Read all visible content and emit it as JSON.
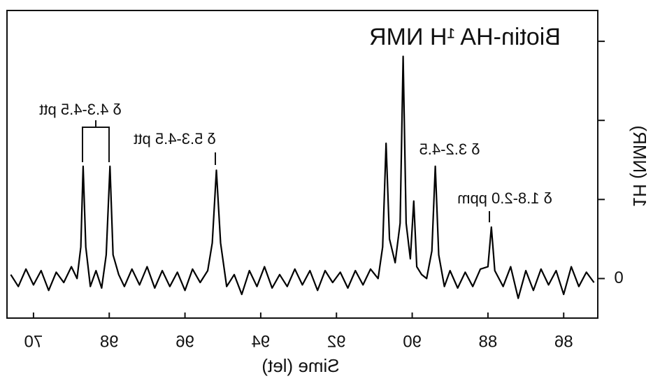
{
  "chart_data": {
    "type": "line",
    "title": "Biotin-HA ¹H NMR",
    "x_label": "Sime (let)",
    "y_label": "1H (NMR)",
    "annotations": [
      "δ 4.3-4.5 ptt",
      "δ 5.3-4.5 ptt",
      "δ 3.2-4.5",
      "δ 1.8-2.0 ppm"
    ],
    "color": "#000000",
    "mirrored_text": true,
    "x": [
      100.6,
      100.4,
      100.2,
      100.0,
      99.8,
      99.6,
      99.4,
      99.2,
      99.0,
      98.85,
      98.75,
      98.69,
      98.62,
      98.5,
      98.35,
      98.2,
      98.08,
      97.98,
      97.9,
      97.75,
      97.6,
      97.4,
      97.2,
      97.0,
      96.8,
      96.6,
      96.4,
      96.2,
      96.0,
      95.8,
      95.6,
      95.4,
      95.28,
      95.17,
      95.06,
      94.9,
      94.7,
      94.5,
      94.3,
      94.1,
      93.9,
      93.7,
      93.5,
      93.3,
      93.1,
      92.9,
      92.7,
      92.5,
      92.3,
      92.1,
      91.9,
      91.7,
      91.5,
      91.3,
      91.1,
      90.9,
      90.78,
      90.69,
      90.6,
      90.45,
      90.32,
      90.24,
      90.16,
      90.05,
      89.96,
      89.88,
      89.75,
      89.62,
      89.48,
      89.39,
      89.3,
      89.15,
      89.0,
      88.8,
      88.6,
      88.4,
      88.2,
      88.0,
      87.91,
      87.82,
      87.6,
      87.4,
      87.2,
      87.0,
      86.8,
      86.6,
      86.4,
      86.2,
      86.0,
      85.8,
      85.6,
      85.4,
      85.2
    ],
    "values": [
      0.05,
      -0.1,
      0.12,
      -0.08,
      0.1,
      -0.15,
      0.08,
      -0.05,
      0.15,
      0.0,
      0.4,
      1.42,
      0.4,
      -0.1,
      0.1,
      -0.12,
      0.3,
      1.42,
      0.3,
      0.05,
      -0.1,
      0.12,
      -0.08,
      0.15,
      -0.12,
      0.1,
      -0.1,
      0.08,
      -0.15,
      0.12,
      -0.05,
      0.1,
      0.45,
      1.37,
      0.45,
      -0.1,
      0.05,
      -0.2,
      0.1,
      -0.1,
      0.15,
      -0.12,
      0.05,
      -0.1,
      0.12,
      -0.08,
      0.1,
      -0.15,
      0.1,
      -0.05,
      0.08,
      -0.12,
      0.1,
      -0.08,
      0.12,
      0.0,
      0.4,
      1.71,
      0.5,
      0.2,
      0.7,
      2.81,
      0.7,
      0.25,
      0.98,
      0.15,
      0.05,
      0.0,
      0.35,
      1.42,
      0.3,
      -0.1,
      0.1,
      -0.12,
      0.08,
      -0.1,
      0.12,
      0.15,
      0.65,
      0.1,
      -0.1,
      0.15,
      -0.25,
      0.1,
      -0.15,
      0.12,
      -0.08,
      0.1,
      -0.2,
      0.15,
      -0.1,
      0.08,
      -0.05
    ],
    "xlim": [
      100.7,
      85.1
    ],
    "xticks": [
      {
        "value": 100,
        "label": "70"
      },
      98,
      96,
      94,
      92,
      90,
      88,
      86
    ],
    "ylim": [
      -0.5,
      3.39
    ],
    "yticks": [
      0
    ],
    "y_minor_ticks": [
      1,
      2,
      3
    ]
  }
}
